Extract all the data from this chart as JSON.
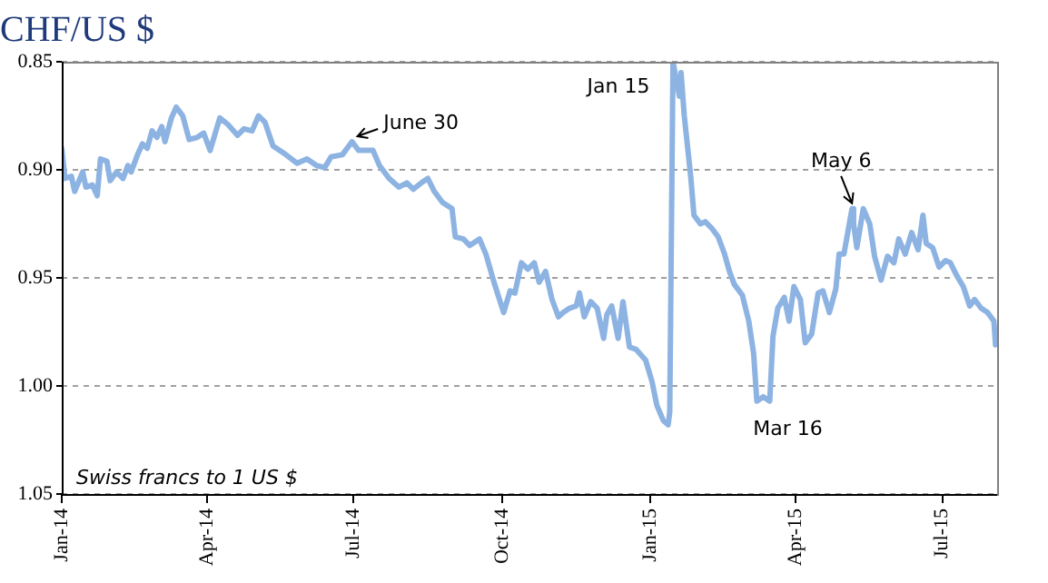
{
  "chart_data": {
    "type": "line",
    "title": "CHF/US $",
    "x": [
      "2014-01-01",
      "2014-01-03",
      "2014-01-07",
      "2014-01-09",
      "2014-01-14",
      "2014-01-16",
      "2014-01-20",
      "2014-01-23",
      "2014-01-25",
      "2014-01-29",
      "2014-01-31",
      "2014-02-04",
      "2014-02-08",
      "2014-02-11",
      "2014-02-13",
      "2014-02-17",
      "2014-02-20",
      "2014-02-23",
      "2014-02-26",
      "2014-03-01",
      "2014-03-04",
      "2014-03-06",
      "2014-03-10",
      "2014-03-13",
      "2014-03-17",
      "2014-03-21",
      "2014-03-26",
      "2014-03-30",
      "2014-04-03",
      "2014-04-09",
      "2014-04-14",
      "2014-04-20",
      "2014-04-24",
      "2014-04-29",
      "2014-05-03",
      "2014-05-07",
      "2014-05-12",
      "2014-05-20",
      "2014-05-27",
      "2014-06-02",
      "2014-06-08",
      "2014-06-13",
      "2014-06-17",
      "2014-06-24",
      "2014-06-30",
      "2014-07-04",
      "2014-07-08",
      "2014-07-13",
      "2014-07-17",
      "2014-07-23",
      "2014-07-29",
      "2014-08-03",
      "2014-08-07",
      "2014-08-12",
      "2014-08-16",
      "2014-08-20",
      "2014-08-25",
      "2014-08-31",
      "2014-09-02",
      "2014-09-07",
      "2014-09-11",
      "2014-09-17",
      "2014-09-21",
      "2014-09-26",
      "2014-10-02",
      "2014-10-06",
      "2014-10-09",
      "2014-10-13",
      "2014-10-17",
      "2014-10-21",
      "2014-10-24",
      "2014-10-28",
      "2014-11-01",
      "2014-11-05",
      "2014-11-08",
      "2014-11-12",
      "2014-11-16",
      "2014-11-18",
      "2014-11-21",
      "2014-11-25",
      "2014-11-29",
      "2014-12-03",
      "2014-12-05",
      "2014-12-08",
      "2014-12-12",
      "2014-12-15",
      "2014-12-19",
      "2014-12-23",
      "2014-12-29",
      "2015-01-02",
      "2015-01-05",
      "2015-01-09",
      "2015-01-12",
      "2015-01-13",
      "2015-01-15",
      "2015-01-17",
      "2015-01-19",
      "2015-01-20",
      "2015-01-22",
      "2015-01-26",
      "2015-01-28",
      "2015-02-01",
      "2015-02-04",
      "2015-02-08",
      "2015-02-12",
      "2015-02-16",
      "2015-02-19",
      "2015-02-22",
      "2015-02-27",
      "2015-03-03",
      "2015-03-06",
      "2015-03-08",
      "2015-03-12",
      "2015-03-16",
      "2015-03-18",
      "2015-03-21",
      "2015-03-25",
      "2015-03-28",
      "2015-03-31",
      "2015-04-04",
      "2015-04-07",
      "2015-04-11",
      "2015-04-15",
      "2015-04-18",
      "2015-04-22",
      "2015-04-26",
      "2015-04-28",
      "2015-05-01",
      "2015-05-06",
      "2015-05-07",
      "2015-05-09",
      "2015-05-13",
      "2015-05-17",
      "2015-05-20",
      "2015-05-24",
      "2015-05-28",
      "2015-06-01",
      "2015-06-04",
      "2015-06-08",
      "2015-06-12",
      "2015-06-16",
      "2015-06-19",
      "2015-06-21",
      "2015-06-25",
      "2015-06-29",
      "2015-07-03",
      "2015-07-06",
      "2015-07-10",
      "2015-07-14",
      "2015-07-18",
      "2015-07-21",
      "2015-07-25",
      "2015-07-29",
      "2015-08-02",
      "2015-08-03"
    ],
    "series": [
      {
        "color": "#8db3e2",
        "values": [
          0.89,
          0.904,
          0.903,
          0.91,
          0.901,
          0.908,
          0.907,
          0.912,
          0.895,
          0.896,
          0.905,
          0.901,
          0.904,
          0.898,
          0.901,
          0.893,
          0.888,
          0.89,
          0.882,
          0.885,
          0.88,
          0.887,
          0.876,
          0.871,
          0.875,
          0.886,
          0.885,
          0.883,
          0.891,
          0.876,
          0.879,
          0.884,
          0.881,
          0.882,
          0.875,
          0.878,
          0.889,
          0.893,
          0.897,
          0.895,
          0.898,
          0.899,
          0.894,
          0.893,
          0.887,
          0.891,
          0.891,
          0.891,
          0.898,
          0.904,
          0.908,
          0.906,
          0.909,
          0.906,
          0.904,
          0.91,
          0.915,
          0.918,
          0.931,
          0.932,
          0.935,
          0.932,
          0.939,
          0.952,
          0.966,
          0.956,
          0.957,
          0.943,
          0.946,
          0.943,
          0.952,
          0.947,
          0.96,
          0.968,
          0.966,
          0.964,
          0.963,
          0.957,
          0.968,
          0.961,
          0.964,
          0.978,
          0.967,
          0.963,
          0.978,
          0.961,
          0.982,
          0.983,
          0.988,
          0.998,
          1.009,
          1.016,
          1.018,
          1.012,
          0.85,
          0.858,
          0.866,
          0.855,
          0.875,
          0.903,
          0.921,
          0.925,
          0.924,
          0.927,
          0.931,
          0.939,
          0.947,
          0.953,
          0.958,
          0.97,
          0.985,
          1.007,
          1.005,
          1.007,
          0.977,
          0.964,
          0.959,
          0.97,
          0.954,
          0.96,
          0.98,
          0.976,
          0.957,
          0.956,
          0.966,
          0.955,
          0.939,
          0.939,
          0.918,
          0.925,
          0.936,
          0.918,
          0.925,
          0.94,
          0.951,
          0.94,
          0.943,
          0.932,
          0.939,
          0.929,
          0.937,
          0.921,
          0.934,
          0.936,
          0.945,
          0.942,
          0.943,
          0.949,
          0.954,
          0.963,
          0.96,
          0.964,
          0.966,
          0.97,
          0.981
        ]
      }
    ],
    "xlim": [
      "2014-01-01",
      "2015-08-04"
    ],
    "xticks": [
      {
        "value": "2014-01-01",
        "label": "Jan-14"
      },
      {
        "value": "2014-04-01",
        "label": "Apr-14"
      },
      {
        "value": "2014-07-01",
        "label": "Jul-14"
      },
      {
        "value": "2014-10-01",
        "label": "Oct-14"
      },
      {
        "value": "2015-01-01",
        "label": "Jan-15"
      },
      {
        "value": "2015-04-01",
        "label": "Apr-15"
      },
      {
        "value": "2015-07-01",
        "label": "Jul-15"
      }
    ],
    "ylim": [
      1.05,
      0.85
    ],
    "yticks": [
      0.85,
      {
        "value": 0.9,
        "label": "0.90"
      },
      0.95,
      {
        "value": 1.0,
        "label": "1.00"
      },
      1.05
    ],
    "grid": "y",
    "legend": false,
    "marker": "none",
    "line_style": "solid",
    "annotations": [
      {
        "text": "Jan 15",
        "x": "2015-01-15",
        "y": 0.85
      },
      {
        "text": "June 30",
        "x": "2014-06-30",
        "y": 0.887
      },
      {
        "text": "May 6",
        "x": "2015-05-06",
        "y": 0.918
      },
      {
        "text": "Mar 16",
        "x": "2015-03-16",
        "y": 1.007
      },
      "Swiss francs to 1 US $"
    ]
  }
}
